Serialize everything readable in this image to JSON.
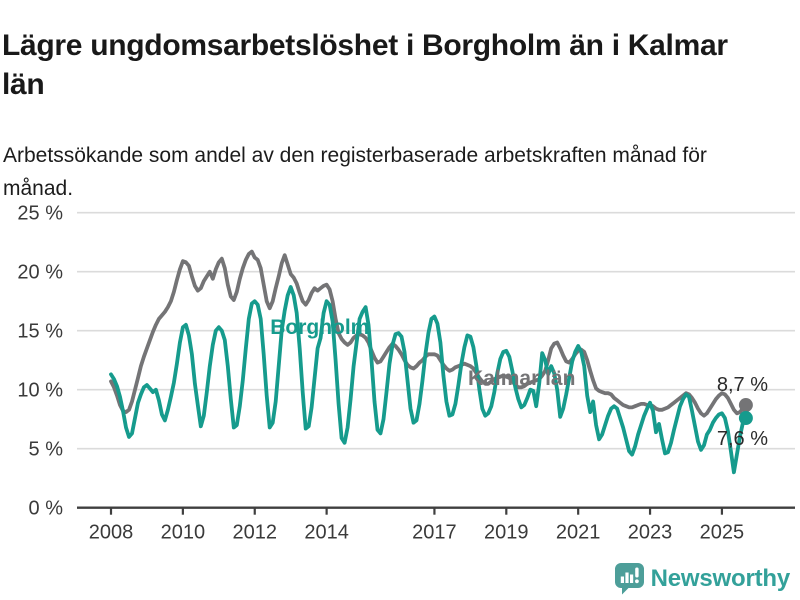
{
  "header": {
    "title": "Lägre ungdomsarbetslöshet i Borgholm än i Kalmar län",
    "subtitle": "Arbetssökande som andel av den registerbaserade arbetskraften månad för månad."
  },
  "footer": {
    "brand": "Newsworthy"
  },
  "colors": {
    "borgholm": "#169B8D",
    "kalmar": "#747476",
    "axis": "#3F3F3F",
    "tick_label": "#3A3A3A",
    "grid": "#DBDBDB",
    "end_label": "#2B2B2B",
    "brand_icon": "#4D9E99",
    "brand_text": "#33A19A"
  },
  "chart_data": {
    "type": "line",
    "unit": "%",
    "x_domain": [
      2008,
      2025.67
    ],
    "ylim": [
      0,
      25
    ],
    "grid": true,
    "legend_position": "inline-labels",
    "start": {
      "year": 2008,
      "month": 1
    },
    "y_ticks": [
      {
        "value": 25,
        "label": "25 %"
      },
      {
        "value": 20,
        "label": "20 %"
      },
      {
        "value": 15,
        "label": "15 %"
      },
      {
        "value": 10,
        "label": "10 %"
      },
      {
        "value": 5,
        "label": "5 %"
      },
      {
        "value": 0,
        "label": "0 %"
      }
    ],
    "x_ticks": [
      {
        "year": 2008,
        "label": "2008"
      },
      {
        "year": 2010,
        "label": "2010"
      },
      {
        "year": 2012,
        "label": "2012"
      },
      {
        "year": 2014,
        "label": "2014"
      },
      {
        "year": 2017,
        "label": "2017"
      },
      {
        "year": 2019,
        "label": "2019"
      },
      {
        "year": 2021,
        "label": "2021"
      },
      {
        "year": 2023,
        "label": "2023"
      },
      {
        "year": 2025,
        "label": "2025"
      }
    ],
    "series": [
      {
        "name": "Kalmar län",
        "color": "#747476",
        "end_label": "8,7 %",
        "end_label_side": "above",
        "values": [
          10.7,
          10.2,
          9.5,
          8.7,
          8.2,
          8.1,
          8.3,
          9.0,
          10.0,
          11.0,
          12.0,
          12.8,
          13.5,
          14.2,
          14.9,
          15.5,
          16.0,
          16.3,
          16.6,
          17.0,
          17.5,
          18.3,
          19.3,
          20.2,
          20.9,
          20.8,
          20.5,
          19.6,
          18.8,
          18.4,
          18.6,
          19.2,
          19.6,
          20.0,
          19.4,
          20.2,
          20.8,
          21.1,
          20.3,
          18.9,
          17.9,
          17.6,
          18.3,
          19.4,
          20.3,
          21.0,
          21.5,
          21.7,
          21.2,
          21.0,
          20.3,
          18.9,
          17.5,
          16.9,
          17.5,
          18.6,
          19.6,
          20.7,
          21.4,
          20.6,
          19.8,
          19.5,
          19.0,
          18.2,
          17.5,
          17.2,
          17.6,
          18.2,
          18.6,
          18.4,
          18.6,
          18.8,
          18.9,
          18.5,
          17.5,
          16.0,
          14.8,
          14.3,
          14.0,
          13.8,
          14.0,
          14.4,
          14.6,
          14.7,
          14.6,
          14.4,
          14.0,
          13.3,
          12.7,
          12.3,
          12.4,
          12.8,
          13.2,
          13.6,
          13.9,
          13.7,
          13.4,
          13.0,
          12.5,
          12.1,
          11.9,
          11.8,
          12.0,
          12.3,
          12.5,
          12.8,
          13.0,
          13.0,
          13.0,
          12.9,
          12.5,
          12.1,
          11.8,
          11.6,
          11.7,
          11.9,
          12.0,
          12.1,
          12.2,
          12.1,
          12.0,
          11.8,
          11.4,
          11.0,
          10.7,
          10.5,
          10.5,
          10.7,
          10.9,
          11.0,
          11.1,
          11.2,
          11.1,
          11.0,
          10.7,
          10.4,
          10.2,
          10.2,
          10.3,
          10.5,
          10.6,
          10.7,
          10.8,
          10.9,
          11.2,
          11.6,
          12.5,
          13.5,
          13.9,
          14.0,
          13.5,
          12.9,
          12.4,
          12.3,
          12.6,
          13.0,
          13.3,
          13.4,
          13.2,
          12.5,
          11.6,
          10.8,
          10.1,
          9.9,
          9.8,
          9.7,
          9.7,
          9.6,
          9.3,
          9.1,
          8.9,
          8.7,
          8.6,
          8.5,
          8.5,
          8.6,
          8.7,
          8.8,
          8.8,
          8.7,
          8.7,
          8.6,
          8.4,
          8.3,
          8.3,
          8.4,
          8.5,
          8.7,
          8.9,
          9.1,
          9.3,
          9.5,
          9.7,
          9.6,
          9.3,
          8.9,
          8.4,
          8.0,
          7.8,
          8.0,
          8.4,
          8.8,
          9.2,
          9.5,
          9.7,
          9.6,
          9.3,
          8.8,
          8.3,
          8.0,
          8.1,
          8.4,
          8.7
        ]
      },
      {
        "name": "Borgholm",
        "color": "#169B8D",
        "end_label": "7,6 %",
        "end_label_side": "below",
        "values": [
          11.3,
          10.9,
          10.3,
          9.4,
          8.2,
          6.8,
          6.0,
          6.3,
          7.6,
          8.9,
          9.6,
          10.2,
          10.4,
          10.1,
          9.8,
          10.0,
          9.1,
          7.9,
          7.4,
          8.3,
          9.4,
          10.6,
          12.2,
          14.0,
          15.3,
          15.5,
          14.6,
          13.0,
          10.5,
          8.7,
          6.9,
          7.8,
          9.8,
          12.0,
          13.8,
          15.0,
          15.3,
          15.0,
          14.2,
          12.0,
          9.2,
          6.8,
          7.0,
          8.6,
          10.8,
          13.5,
          16.0,
          17.3,
          17.5,
          17.2,
          16.0,
          13.0,
          9.5,
          6.8,
          7.2,
          9.0,
          12.0,
          15.0,
          16.7,
          18.0,
          18.7,
          18.0,
          16.5,
          13.5,
          9.8,
          6.7,
          6.9,
          8.5,
          11.0,
          13.5,
          14.4,
          16.5,
          17.5,
          17.2,
          15.8,
          12.5,
          8.8,
          5.9,
          5.5,
          6.8,
          9.2,
          12.0,
          14.0,
          16.0,
          16.6,
          17.0,
          15.5,
          12.5,
          9.0,
          6.6,
          6.3,
          7.5,
          9.8,
          12.2,
          13.8,
          14.7,
          14.8,
          14.5,
          13.2,
          10.8,
          8.4,
          7.2,
          7.4,
          8.8,
          10.8,
          13.0,
          14.8,
          16.0,
          16.2,
          15.6,
          14.0,
          11.2,
          9.0,
          7.8,
          7.9,
          8.8,
          10.4,
          12.2,
          13.6,
          14.6,
          14.5,
          13.6,
          12.0,
          10.0,
          8.4,
          7.8,
          8.0,
          8.6,
          9.8,
          11.4,
          12.6,
          13.2,
          13.3,
          12.8,
          11.6,
          10.2,
          9.2,
          8.5,
          8.7,
          9.3,
          10.0,
          9.9,
          8.6,
          10.5,
          13.1,
          12.5,
          11.3,
          12.0,
          11.4,
          10.0,
          7.7,
          8.4,
          9.6,
          11.0,
          12.4,
          13.2,
          13.7,
          13.2,
          12.0,
          9.5,
          8.1,
          9.0,
          7.0,
          5.8,
          6.2,
          7.0,
          7.8,
          8.4,
          8.6,
          8.4,
          7.6,
          6.8,
          5.8,
          4.8,
          4.5,
          5.2,
          6.2,
          7.0,
          7.8,
          8.4,
          8.9,
          8.2,
          6.4,
          7.1,
          5.8,
          4.6,
          4.7,
          5.5,
          6.6,
          7.6,
          8.6,
          9.2,
          9.6,
          9.4,
          8.2,
          6.9,
          5.6,
          4.9,
          5.3,
          6.2,
          6.6,
          7.2,
          7.6,
          7.9,
          8.0,
          7.6,
          6.5,
          4.8,
          3.0,
          4.5,
          6.0,
          7.2,
          7.6
        ]
      }
    ],
    "series_labels": [
      {
        "text": "Borgholm",
        "color": "#169B8D",
        "x_year": 2013.81,
        "value": 14.7
      },
      {
        "text": "Kalmar län",
        "color": "#747476",
        "x_year": 2019.43,
        "value": 10.4
      }
    ]
  }
}
